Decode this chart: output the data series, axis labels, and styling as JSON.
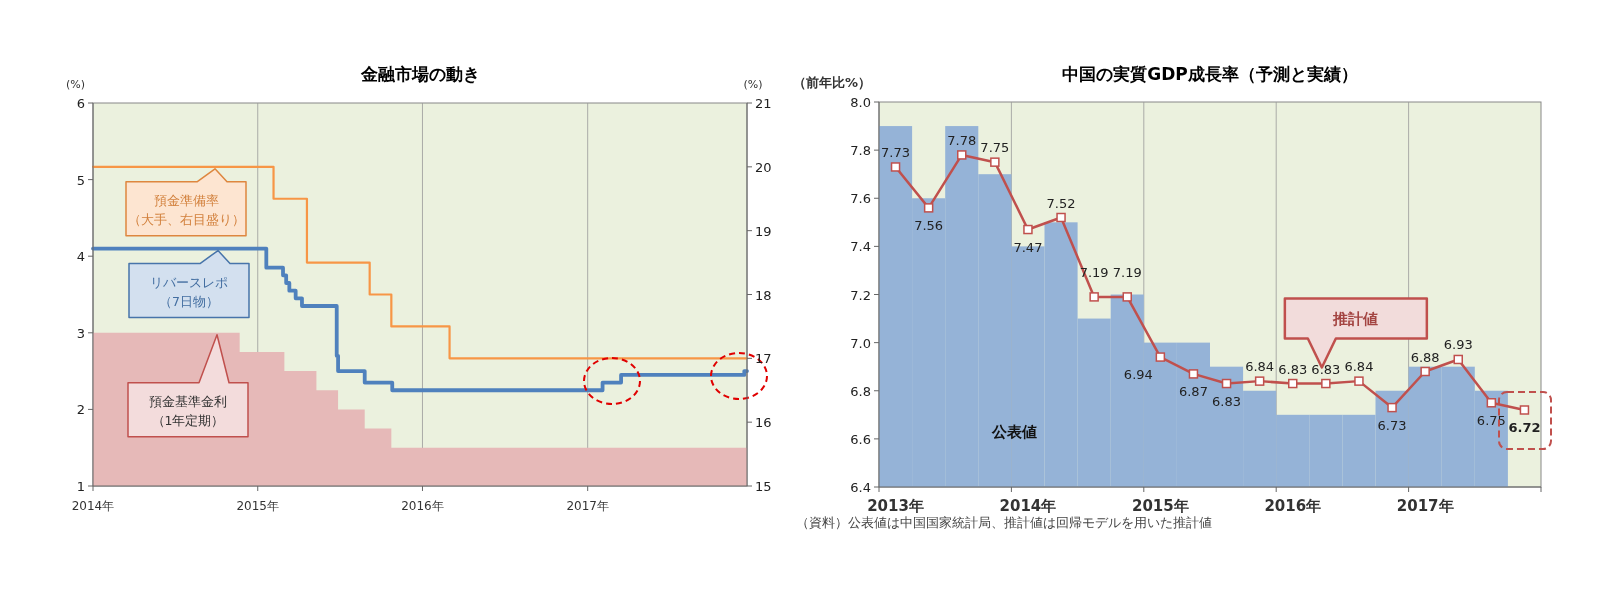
{
  "chart_data": [
    {
      "type": "line",
      "title": "金融市場の動き",
      "ylabel": "(%)",
      "y2label": "(%)",
      "xlim": [
        "2014-01-01",
        "2017-12-20"
      ],
      "xticks": [
        {
          "value": "2014-01-01",
          "label": "2014年"
        },
        {
          "value": "2015-01-01",
          "label": "2015年"
        },
        {
          "value": "2016-01-01",
          "label": "2016年"
        },
        {
          "value": "2017-01-01",
          "label": "2017年"
        }
      ],
      "ylim": [
        1,
        6
      ],
      "yticks": [
        1,
        2,
        3,
        4,
        5,
        6
      ],
      "y2lim": [
        15,
        21
      ],
      "y2ticks": [
        15,
        16,
        17,
        18,
        19,
        20,
        21
      ],
      "grid": "x",
      "series": [
        {
          "name": "預金基準金利（1年定期）",
          "type": "area",
          "color": "#e6b9b8",
          "x": [
            "2014-01-01",
            "2014-11-22",
            "2014-11-22",
            "2015-03-01",
            "2015-03-01",
            "2015-05-11",
            "2015-05-11",
            "2015-06-28",
            "2015-06-28",
            "2015-08-26",
            "2015-08-26",
            "2015-10-24",
            "2015-10-24",
            "2017-12-20"
          ],
          "values": [
            3.0,
            3.0,
            2.75,
            2.75,
            2.5,
            2.5,
            2.25,
            2.25,
            2.0,
            2.0,
            1.75,
            1.75,
            1.5,
            1.5
          ]
        },
        {
          "name": "預金準備率（大手、右目盛り）",
          "axis": "y2",
          "color": "#f79646",
          "x": [
            "2014-01-01",
            "2015-02-05",
            "2015-02-05",
            "2015-04-20",
            "2015-04-20",
            "2015-09-06",
            "2015-09-06",
            "2015-10-24",
            "2015-10-24",
            "2016-03-01",
            "2016-03-01",
            "2017-12-20"
          ],
          "values": [
            20,
            20,
            19.5,
            19.5,
            18.5,
            18.5,
            18,
            18,
            17.5,
            17.5,
            17,
            17
          ]
        },
        {
          "name": "リバースレポ（7日物）",
          "color": "#4f81bd",
          "x": [
            "2014-01-01",
            "2015-01-20",
            "2015-01-20",
            "2015-02-26",
            "2015-02-26",
            "2015-03-05",
            "2015-03-05",
            "2015-03-12",
            "2015-03-12",
            "2015-03-26",
            "2015-03-26",
            "2015-04-09",
            "2015-04-09",
            "2015-06-25",
            "2015-06-25",
            "2015-06-28",
            "2015-06-28",
            "2015-08-26",
            "2015-08-26",
            "2015-10-26",
            "2015-10-26",
            "2017-02-03",
            "2017-02-03",
            "2017-03-16",
            "2017-03-16",
            "2017-12-14",
            "2017-12-14",
            "2017-12-20"
          ],
          "values": [
            4.1,
            4.1,
            3.85,
            3.85,
            3.75,
            3.75,
            3.65,
            3.65,
            3.55,
            3.55,
            3.45,
            3.45,
            3.35,
            3.35,
            2.7,
            2.7,
            2.5,
            2.5,
            2.35,
            2.35,
            2.25,
            2.25,
            2.35,
            2.35,
            2.45,
            2.45,
            2.5,
            2.5
          ]
        }
      ]
    },
    {
      "type": "bar",
      "title": "中国の実質GDP成長率（予測と実績）",
      "ylabel": "（前年比%）",
      "categories": [
        "2013年",
        null,
        null,
        null,
        "2014年",
        null,
        null,
        null,
        "2015年",
        null,
        null,
        null,
        "2016年",
        null,
        null,
        null,
        "2017年",
        null,
        null,
        null
      ],
      "ylim": [
        6.4,
        8.0
      ],
      "yticks": [
        {
          "value": 6.4,
          "label": "6.4"
        },
        {
          "value": 6.6,
          "label": "6.6"
        },
        {
          "value": 6.8,
          "label": "6.8"
        },
        {
          "value": 7.0,
          "label": "7.0"
        },
        {
          "value": 7.2,
          "label": "7.2"
        },
        {
          "value": 7.4,
          "label": "7.4"
        },
        {
          "value": 7.6,
          "label": "7.6"
        },
        {
          "value": 7.8,
          "label": "7.8"
        },
        {
          "value": 8.0,
          "label": "8.0"
        }
      ],
      "grid": "x",
      "series": [
        {
          "name": "公表値",
          "color": "#95b3d7",
          "values": [
            7.9,
            7.6,
            7.9,
            7.7,
            7.4,
            7.5,
            7.1,
            7.2,
            7.0,
            7.0,
            6.9,
            6.8,
            6.7,
            6.7,
            6.7,
            6.8,
            6.9,
            6.9,
            6.8,
            null
          ]
        },
        {
          "name": "推計値",
          "type": "line",
          "color": "#c0504d",
          "marker": "square",
          "values": [
            7.73,
            7.56,
            7.78,
            7.75,
            7.47,
            7.52,
            7.19,
            7.19,
            6.94,
            6.87,
            6.83,
            6.84,
            6.83,
            6.83,
            6.84,
            6.73,
            6.88,
            6.93,
            6.75,
            6.72
          ],
          "value_labels": [
            "7.73",
            "7.56",
            "7.78",
            "7.75",
            "7.47",
            "7.52",
            "7.19",
            "7.19",
            "6.94",
            "6.87",
            "6.83",
            "6.84",
            "6.83",
            "6.83",
            "6.84",
            "6.73",
            "6.88",
            "6.93",
            "6.75",
            "**6.72**"
          ]
        }
      ],
      "annotations": [
        "（資料）公表値は中国国家統計局、推計値は回帰モデルを用いた推計値"
      ]
    }
  ]
}
